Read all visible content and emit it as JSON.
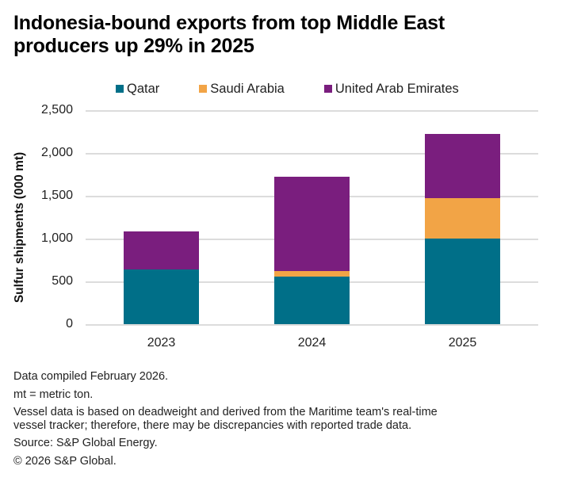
{
  "title": {
    "line1": "Indonesia-bound exports from top Middle East",
    "line2": "producers up 29% in 2025"
  },
  "legend": [
    {
      "label": "Qatar",
      "color": "#006F88"
    },
    {
      "label": "Saudi Arabia",
      "color": "#F2A446"
    },
    {
      "label": "United Arab Emirates",
      "color": "#7A1E7E"
    }
  ],
  "y_axis": {
    "label": "Sulfur shipments (000 mt)",
    "ticks": [
      "2,500",
      "2,000",
      "1,500",
      "1,000",
      "500",
      "0"
    ]
  },
  "x_axis": {
    "ticks": [
      "2023",
      "2024",
      "2025"
    ]
  },
  "notes": {
    "compiled": "Data compiled February 2026.",
    "unit": "mt = metric ton.",
    "vessel_line1": "Vessel data is based on deadweight and derived from the Maritime team's real-time",
    "vessel_line2": "vessel tracker; therefore, there may be discrepancies with reported trade data.",
    "source": "Source: S&P Global Energy.",
    "copyright": "© 2026 S&P Global."
  },
  "chart_data": {
    "type": "bar",
    "stacked": true,
    "title": "Indonesia-bound exports from top Middle East producers up 29% in 2025",
    "xlabel": "",
    "ylabel": "Sulfur shipments (000 mt)",
    "ylim": [
      0,
      2500
    ],
    "yticks": [
      0,
      500,
      1000,
      1500,
      2000,
      2500
    ],
    "grid": true,
    "legend_position": "top",
    "categories": [
      "2023",
      "2024",
      "2025"
    ],
    "series": [
      {
        "name": "Qatar",
        "color": "#006F88",
        "values": [
          640,
          560,
          1000
        ]
      },
      {
        "name": "Saudi Arabia",
        "color": "#F2A446",
        "values": [
          0,
          60,
          470
        ]
      },
      {
        "name": "United Arab Emirates",
        "color": "#7A1E7E",
        "values": [
          445,
          1105,
          750
        ]
      }
    ],
    "totals": [
      1085,
      1725,
      2220
    ]
  }
}
